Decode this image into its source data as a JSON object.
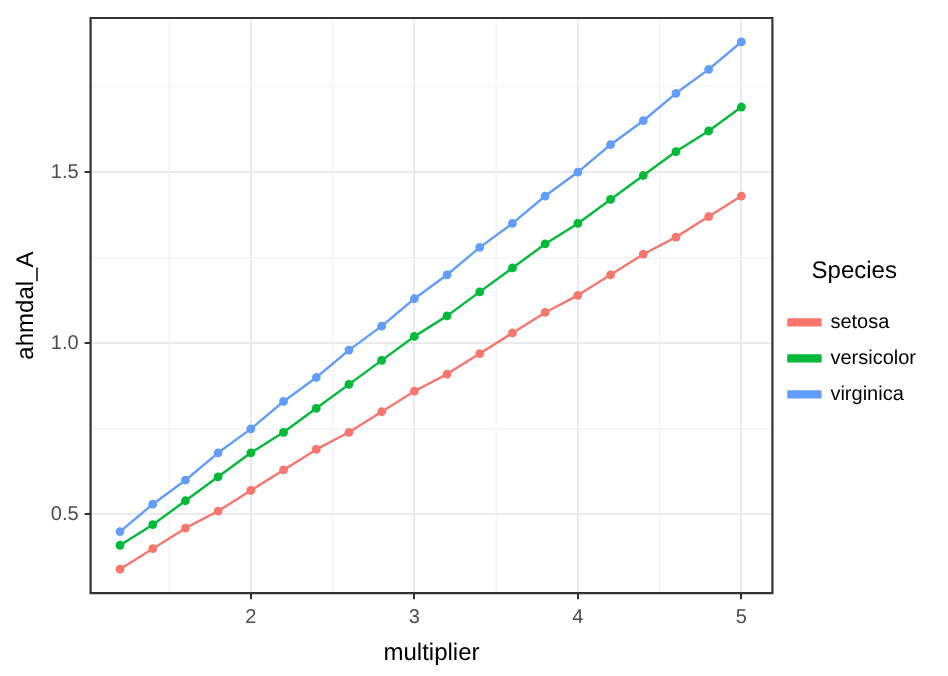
{
  "chart_data": {
    "type": "line",
    "xlabel": "multiplier",
    "ylabel": "ahmdal_A",
    "legend_title": "Species",
    "legend": "right",
    "grid": true,
    "marker": "circle",
    "line_style": "solid",
    "x": [
      1.2,
      1.4,
      1.6,
      1.8,
      2.0,
      2.2,
      2.4,
      2.6,
      2.8,
      3.0,
      3.2,
      3.4,
      3.6,
      3.8,
      4.0,
      4.2,
      4.4,
      4.6,
      4.8,
      5.0
    ],
    "xlim": [
      1.02,
      5.19
    ],
    "xticks": [
      2,
      3,
      4,
      5
    ],
    "ylim": [
      0.27,
      1.95
    ],
    "yticks": [
      0.5,
      {
        "value": 1,
        "label": "1.0"
      },
      1.5
    ],
    "series": [
      {
        "name": "setosa",
        "color": "#f8766d",
        "values": [
          0.34,
          0.4,
          0.46,
          0.51,
          0.57,
          0.63,
          0.69,
          0.74,
          0.8,
          0.86,
          0.91,
          0.97,
          1.03,
          1.09,
          1.14,
          1.2,
          1.26,
          1.31,
          1.37,
          1.43
        ]
      },
      {
        "name": "versicolor",
        "color": "#00ba38",
        "values": [
          0.41,
          0.47,
          0.54,
          0.61,
          0.68,
          0.74,
          0.81,
          0.88,
          0.95,
          1.02,
          1.08,
          1.15,
          1.22,
          1.29,
          1.35,
          1.42,
          1.49,
          1.56,
          1.62,
          1.69
        ]
      },
      {
        "name": "virginica",
        "color": "#619cff",
        "values": [
          0.45,
          0.53,
          0.6,
          0.68,
          0.75,
          0.83,
          0.9,
          0.98,
          1.05,
          1.13,
          1.2,
          1.28,
          1.35,
          1.43,
          1.5,
          1.58,
          1.65,
          1.73,
          1.8,
          1.88
        ]
      }
    ]
  }
}
